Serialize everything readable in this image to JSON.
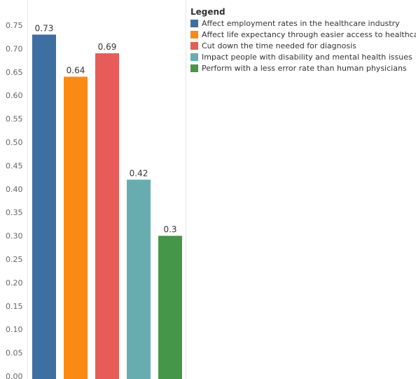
{
  "chart_data": {
    "type": "bar",
    "categories": [
      "Affect employment rates in the healthcare industry",
      "Affect life expectancy through easier access to healthcare",
      "Cut down the time needed for diagnosis",
      "Impact people with disability and mental health issues",
      "Perform with a less error rate than human physicians"
    ],
    "values": [
      0.73,
      0.64,
      0.69,
      0.42,
      0.3
    ],
    "value_labels": [
      "0.73",
      "0.64",
      "0.69",
      "0.42",
      "0.3"
    ],
    "colors": [
      "#3d6fa0",
      "#fb8a14",
      "#e75b58",
      "#67adb0",
      "#46964a"
    ],
    "ylim": [
      0,
      0.75
    ],
    "yticks": [
      "0.00",
      "0.05",
      "0.10",
      "0.15",
      "0.20",
      "0.25",
      "0.30",
      "0.35",
      "0.40",
      "0.45",
      "0.50",
      "0.55",
      "0.60",
      "0.65",
      "0.70",
      "0.75"
    ],
    "grid": false,
    "legend": {
      "title": "Legend",
      "placement": "top-right"
    }
  }
}
